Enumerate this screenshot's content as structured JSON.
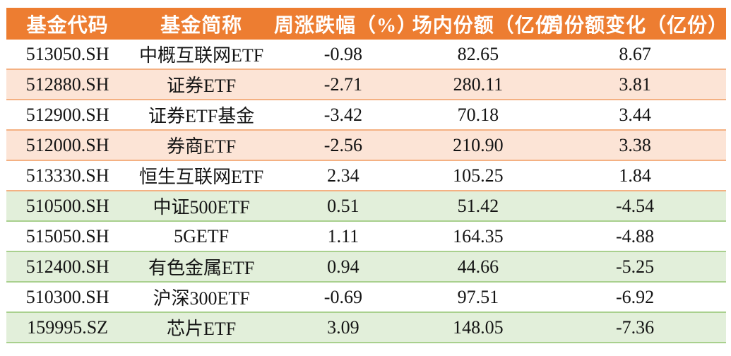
{
  "chart_data": {
    "type": "table",
    "columns": [
      "基金代码",
      "基金简称",
      "周涨跌幅（%）",
      "场内份额（亿份）",
      "周份额变化（亿份）"
    ],
    "rows": [
      {
        "code": "513050.SH",
        "name": "中概互联网ETF",
        "pct": "-0.98",
        "shares": "82.65",
        "chg": "8.67"
      },
      {
        "code": "512880.SH",
        "name": "证券ETF",
        "pct": "-2.71",
        "shares": "280.11",
        "chg": "3.81"
      },
      {
        "code": "512900.SH",
        "name": "证券ETF基金",
        "pct": "-3.42",
        "shares": "70.18",
        "chg": "3.44"
      },
      {
        "code": "512000.SH",
        "name": "券商ETF",
        "pct": "-2.56",
        "shares": "210.90",
        "chg": "3.38"
      },
      {
        "code": "513330.SH",
        "name": "恒生互联网ETF",
        "pct": "2.34",
        "shares": "105.25",
        "chg": "1.84"
      },
      {
        "code": "510500.SH",
        "name": "中证500ETF",
        "pct": "0.51",
        "shares": "51.42",
        "chg": "-4.54"
      },
      {
        "code": "515050.SH",
        "name": "5GETF",
        "pct": "1.11",
        "shares": "164.35",
        "chg": "-4.88"
      },
      {
        "code": "512400.SH",
        "name": "有色金属ETF",
        "pct": "0.94",
        "shares": "44.66",
        "chg": "-5.25"
      },
      {
        "code": "510300.SH",
        "name": "沪深300ETF",
        "pct": "-0.69",
        "shares": "97.51",
        "chg": "-6.92"
      },
      {
        "code": "159995.SZ",
        "name": "芯片ETF",
        "pct": "3.09",
        "shares": "148.05",
        "chg": "-7.36"
      }
    ],
    "layout": {
      "header_style": "solid orange banner, white bold text",
      "row_striping": "rows with positive weekly share change striped peach, negative striped green, alternating with white"
    }
  },
  "colors": {
    "header_bg": "#ED7D31",
    "header_text": "#FFFFFF",
    "stripe_orange": "#FCE4D6",
    "stripe_green": "#E2EFDA",
    "divider_orange": "#F4B183",
    "divider_green": "#A9D08E",
    "body_text": "#141414",
    "page_bg": "#FFFFFF"
  }
}
